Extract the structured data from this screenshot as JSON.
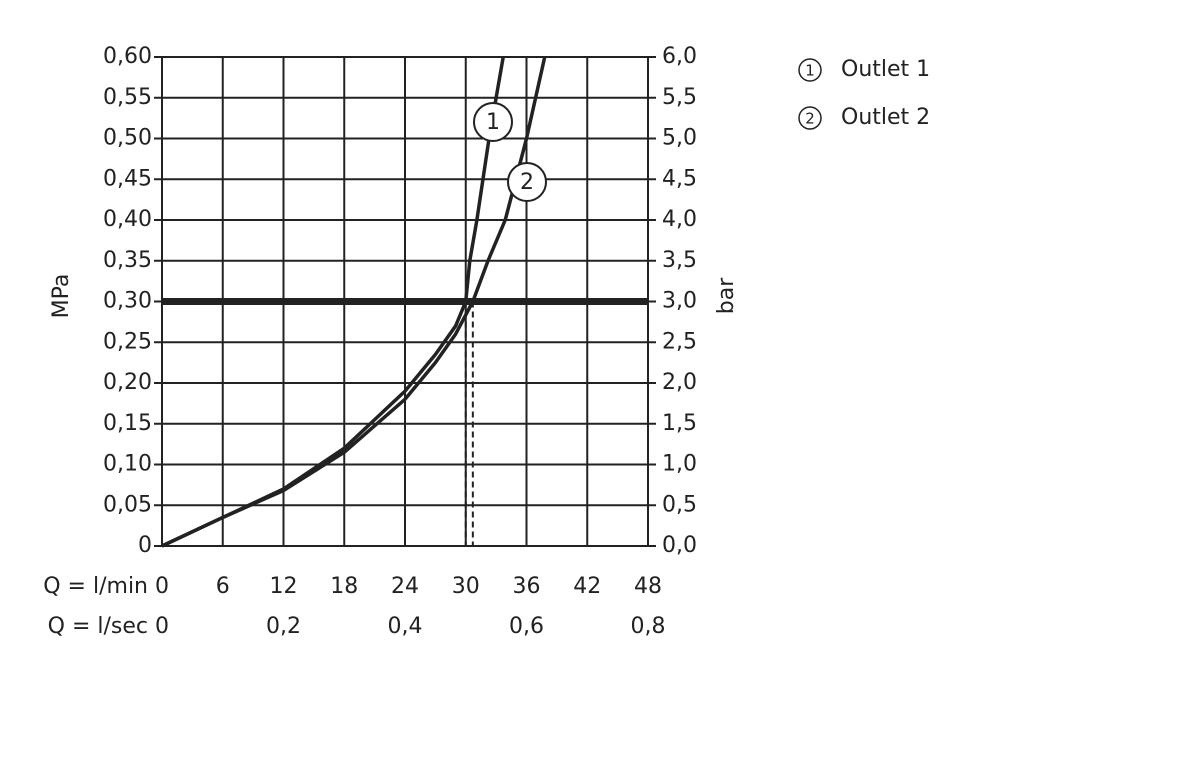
{
  "chart_data": {
    "type": "line",
    "xlabel": "Q = l/min",
    "x2label": "Q = l/sec",
    "ylabel": "MPa",
    "y2label": "bar",
    "xlim": [
      0,
      48
    ],
    "xticks": [
      0,
      6,
      12,
      18,
      24,
      30,
      36,
      42,
      48
    ],
    "x2lim": [
      0,
      0.8
    ],
    "x2ticks": [
      0,
      {
        "value": 0.2,
        "label": "0,2"
      },
      {
        "value": 0.4,
        "label": "0,4"
      },
      {
        "value": 0.6,
        "label": "0,6"
      },
      {
        "value": 0.8,
        "label": "0,8"
      }
    ],
    "ylim": [
      0,
      0.6
    ],
    "yticks": [
      0,
      {
        "value": 0.05,
        "label": "0,05"
      },
      {
        "value": 0.1,
        "label": "0,10"
      },
      {
        "value": 0.15,
        "label": "0,15"
      },
      {
        "value": 0.2,
        "label": "0,20"
      },
      {
        "value": 0.25,
        "label": "0,25"
      },
      {
        "value": 0.3,
        "label": "0,30"
      },
      {
        "value": 0.35,
        "label": "0,35"
      },
      {
        "value": 0.4,
        "label": "0,40"
      },
      {
        "value": 0.45,
        "label": "0,45"
      },
      {
        "value": 0.5,
        "label": "0,50"
      },
      {
        "value": 0.55,
        "label": "0,55"
      },
      {
        "value": 0.6,
        "label": "0,60"
      }
    ],
    "y2lim": [
      0,
      6
    ],
    "y2ticks": [
      {
        "value": 0,
        "label": "0,0"
      },
      {
        "value": 0.5,
        "label": "0,5"
      },
      {
        "value": 1,
        "label": "1,0"
      },
      {
        "value": 1.5,
        "label": "1,5"
      },
      {
        "value": 2,
        "label": "2,0"
      },
      {
        "value": 2.5,
        "label": "2,5"
      },
      {
        "value": 3,
        "label": "3,0"
      },
      {
        "value": 3.5,
        "label": "3,5"
      },
      {
        "value": 4,
        "label": "4,0"
      },
      {
        "value": 4.5,
        "label": "4,5"
      },
      {
        "value": 5,
        "label": "5,0"
      },
      {
        "value": 5.5,
        "label": "5,5"
      },
      {
        "value": 6,
        "label": "6,0"
      }
    ],
    "grid": true,
    "reference_y": 0.3,
    "series": [
      {
        "name": "Outlet 1",
        "curve_label": "1",
        "color": "#222222",
        "x_at_ref": 30.0,
        "x": [
          0,
          6,
          12,
          18,
          24,
          27,
          29,
          30,
          30.4,
          31.1,
          32.3,
          33.7
        ],
        "values": [
          0,
          0.035,
          0.07,
          0.12,
          0.19,
          0.235,
          0.27,
          0.3,
          0.35,
          0.4,
          0.5,
          0.6
        ]
      },
      {
        "name": "Outlet 2",
        "curve_label": "2",
        "color": "#222222",
        "x_at_ref": 30.7,
        "x": [
          0,
          6,
          12,
          18,
          24,
          27,
          29,
          30.7,
          32.2,
          33.9,
          36.0,
          37.8
        ],
        "values": [
          0,
          0.035,
          0.068,
          0.115,
          0.18,
          0.225,
          0.26,
          0.3,
          0.35,
          0.4,
          0.5,
          0.6
        ]
      }
    ]
  }
}
